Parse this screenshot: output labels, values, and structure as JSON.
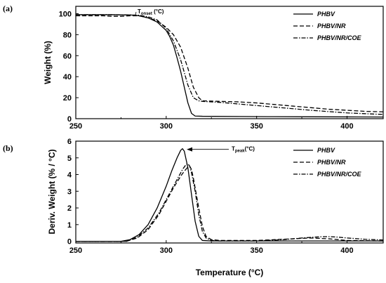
{
  "chart_data": [
    {
      "type": "line",
      "panel": "(a)",
      "title": "",
      "xlabel": "",
      "ylabel": "Weight (%)",
      "xlim": [
        250,
        420
      ],
      "ylim": [
        0,
        107
      ],
      "xticks": [
        250,
        300,
        350,
        400
      ],
      "yticks": [
        0,
        20,
        40,
        60,
        80,
        100
      ],
      "legend_position": "top-right",
      "annotation": {
        "main": "T",
        "sub": "onset",
        "rest": " (°C)",
        "x": 283,
        "y": 99
      },
      "series": [
        {
          "name": "PHBV",
          "style": "solid",
          "x": [
            250,
            270,
            280,
            285,
            290,
            295,
            300,
            302,
            304,
            306,
            308,
            310,
            312,
            314,
            316,
            320,
            340,
            360,
            380,
            400,
            420
          ],
          "y": [
            99,
            99,
            98.8,
            98,
            96,
            92,
            84,
            78,
            70,
            58,
            45,
            30,
            15,
            5,
            2.5,
            2.3,
            2.1,
            1.9,
            1.8,
            1.7,
            1.6
          ]
        },
        {
          "name": "PHBV/NR",
          "style": "dashed",
          "x": [
            250,
            265,
            270,
            275,
            280,
            285,
            290,
            295,
            300,
            304,
            308,
            312,
            315,
            318,
            320,
            330,
            340,
            350,
            360,
            370,
            380,
            390,
            400,
            410,
            420
          ],
          "y": [
            98,
            98,
            97.5,
            97.5,
            98,
            98,
            96,
            93,
            87,
            80,
            68,
            48,
            30,
            20,
            17,
            16.5,
            16,
            15,
            13.5,
            12,
            10.5,
            9,
            8,
            7,
            6.5
          ]
        },
        {
          "name": "PHBV/NR/COE",
          "style": "dashdot",
          "x": [
            250,
            270,
            280,
            285,
            290,
            295,
            300,
            304,
            308,
            312,
            315,
            318,
            320,
            330,
            340,
            360,
            380,
            400,
            420
          ],
          "y": [
            99,
            99,
            98.8,
            98.5,
            97,
            94,
            86,
            74,
            56,
            32,
            20,
            17,
            16.5,
            15.5,
            14,
            11,
            8,
            5.5,
            4
          ]
        }
      ]
    },
    {
      "type": "line",
      "panel": "(b)",
      "title": "",
      "xlabel": "Temperature (°C)",
      "ylabel": "Deriv. Weight (% / °C)",
      "xlim": [
        250,
        420
      ],
      "ylim": [
        -0.1,
        6
      ],
      "xticks": [
        250,
        300,
        350,
        400
      ],
      "yticks": [
        0,
        1,
        2,
        3,
        4,
        5,
        6
      ],
      "legend_position": "top-right",
      "annotation": {
        "main": "T",
        "sub": "peak",
        "rest": "(°C)",
        "x": 309,
        "y": 5.55
      },
      "series": [
        {
          "name": "PHBV",
          "style": "solid",
          "x": [
            250,
            275,
            280,
            285,
            290,
            295,
            300,
            303,
            306,
            308,
            309,
            310,
            312,
            314,
            316,
            318,
            320,
            325,
            340,
            380,
            420
          ],
          "y": [
            0,
            0,
            0.1,
            0.4,
            1.0,
            2.0,
            3.3,
            4.2,
            5.0,
            5.45,
            5.55,
            5.4,
            4.4,
            2.8,
            1.2,
            0.3,
            0.05,
            0.02,
            0.02,
            0.02,
            0.02
          ]
        },
        {
          "name": "PHBV/NR",
          "style": "dashed",
          "x": [
            250,
            278,
            284,
            290,
            296,
            300,
            304,
            308,
            310,
            312,
            313,
            314,
            315,
            316,
            318,
            320,
            322,
            325,
            330,
            350,
            370,
            380,
            390,
            400,
            420
          ],
          "y": [
            0,
            0,
            0.2,
            0.7,
            1.6,
            2.4,
            3.2,
            3.9,
            4.2,
            4.45,
            4.5,
            4.3,
            3.8,
            3.2,
            2.0,
            0.9,
            0.3,
            0.1,
            0.05,
            0.05,
            0.15,
            0.2,
            0.15,
            0.05,
            0.02
          ]
        },
        {
          "name": "PHBV/NR/COE",
          "style": "dashdot",
          "x": [
            250,
            278,
            284,
            290,
            296,
            300,
            304,
            307,
            309,
            311,
            312,
            313,
            314,
            316,
            318,
            320,
            322,
            325,
            330,
            350,
            365,
            375,
            385,
            390,
            395,
            400,
            410,
            420
          ],
          "y": [
            0,
            0,
            0.25,
            0.8,
            1.7,
            2.5,
            3.3,
            3.9,
            4.3,
            4.6,
            4.65,
            4.5,
            4.1,
            3.0,
            1.6,
            0.6,
            0.2,
            0.05,
            0.02,
            0.02,
            0.1,
            0.2,
            0.27,
            0.28,
            0.25,
            0.2,
            0.12,
            0.08
          ]
        }
      ]
    }
  ]
}
